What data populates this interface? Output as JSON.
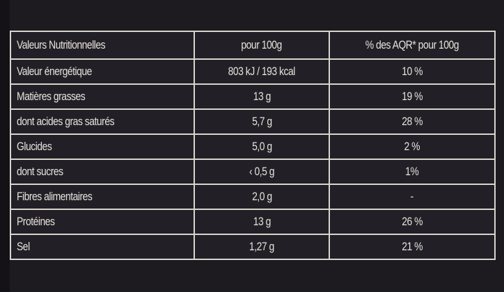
{
  "table": {
    "headers": [
      "Valeurs Nutritionnelles",
      "pour 100g",
      "% des AQR* pour 100g"
    ],
    "rows": [
      [
        "Valeur énergétique",
        "803 kJ / 193 kcal",
        "10 %"
      ],
      [
        "Matières grasses",
        "13 g",
        "19 %"
      ],
      [
        "dont acides gras saturés",
        "5,7 g",
        "28 %"
      ],
      [
        "Glucides",
        "5,0 g",
        "2 %"
      ],
      [
        "dont sucres",
        "‹ 0,5 g",
        "1%"
      ],
      [
        "Fibres alimentaires",
        "2,0 g",
        "-"
      ],
      [
        "Protéines",
        "13 g",
        "26 %"
      ],
      [
        "Sel",
        "1,27 g",
        "21 %"
      ]
    ]
  },
  "colors": {
    "background": "#1d1a20",
    "lines": "#d9d5cc",
    "text": "#e6e2da"
  }
}
